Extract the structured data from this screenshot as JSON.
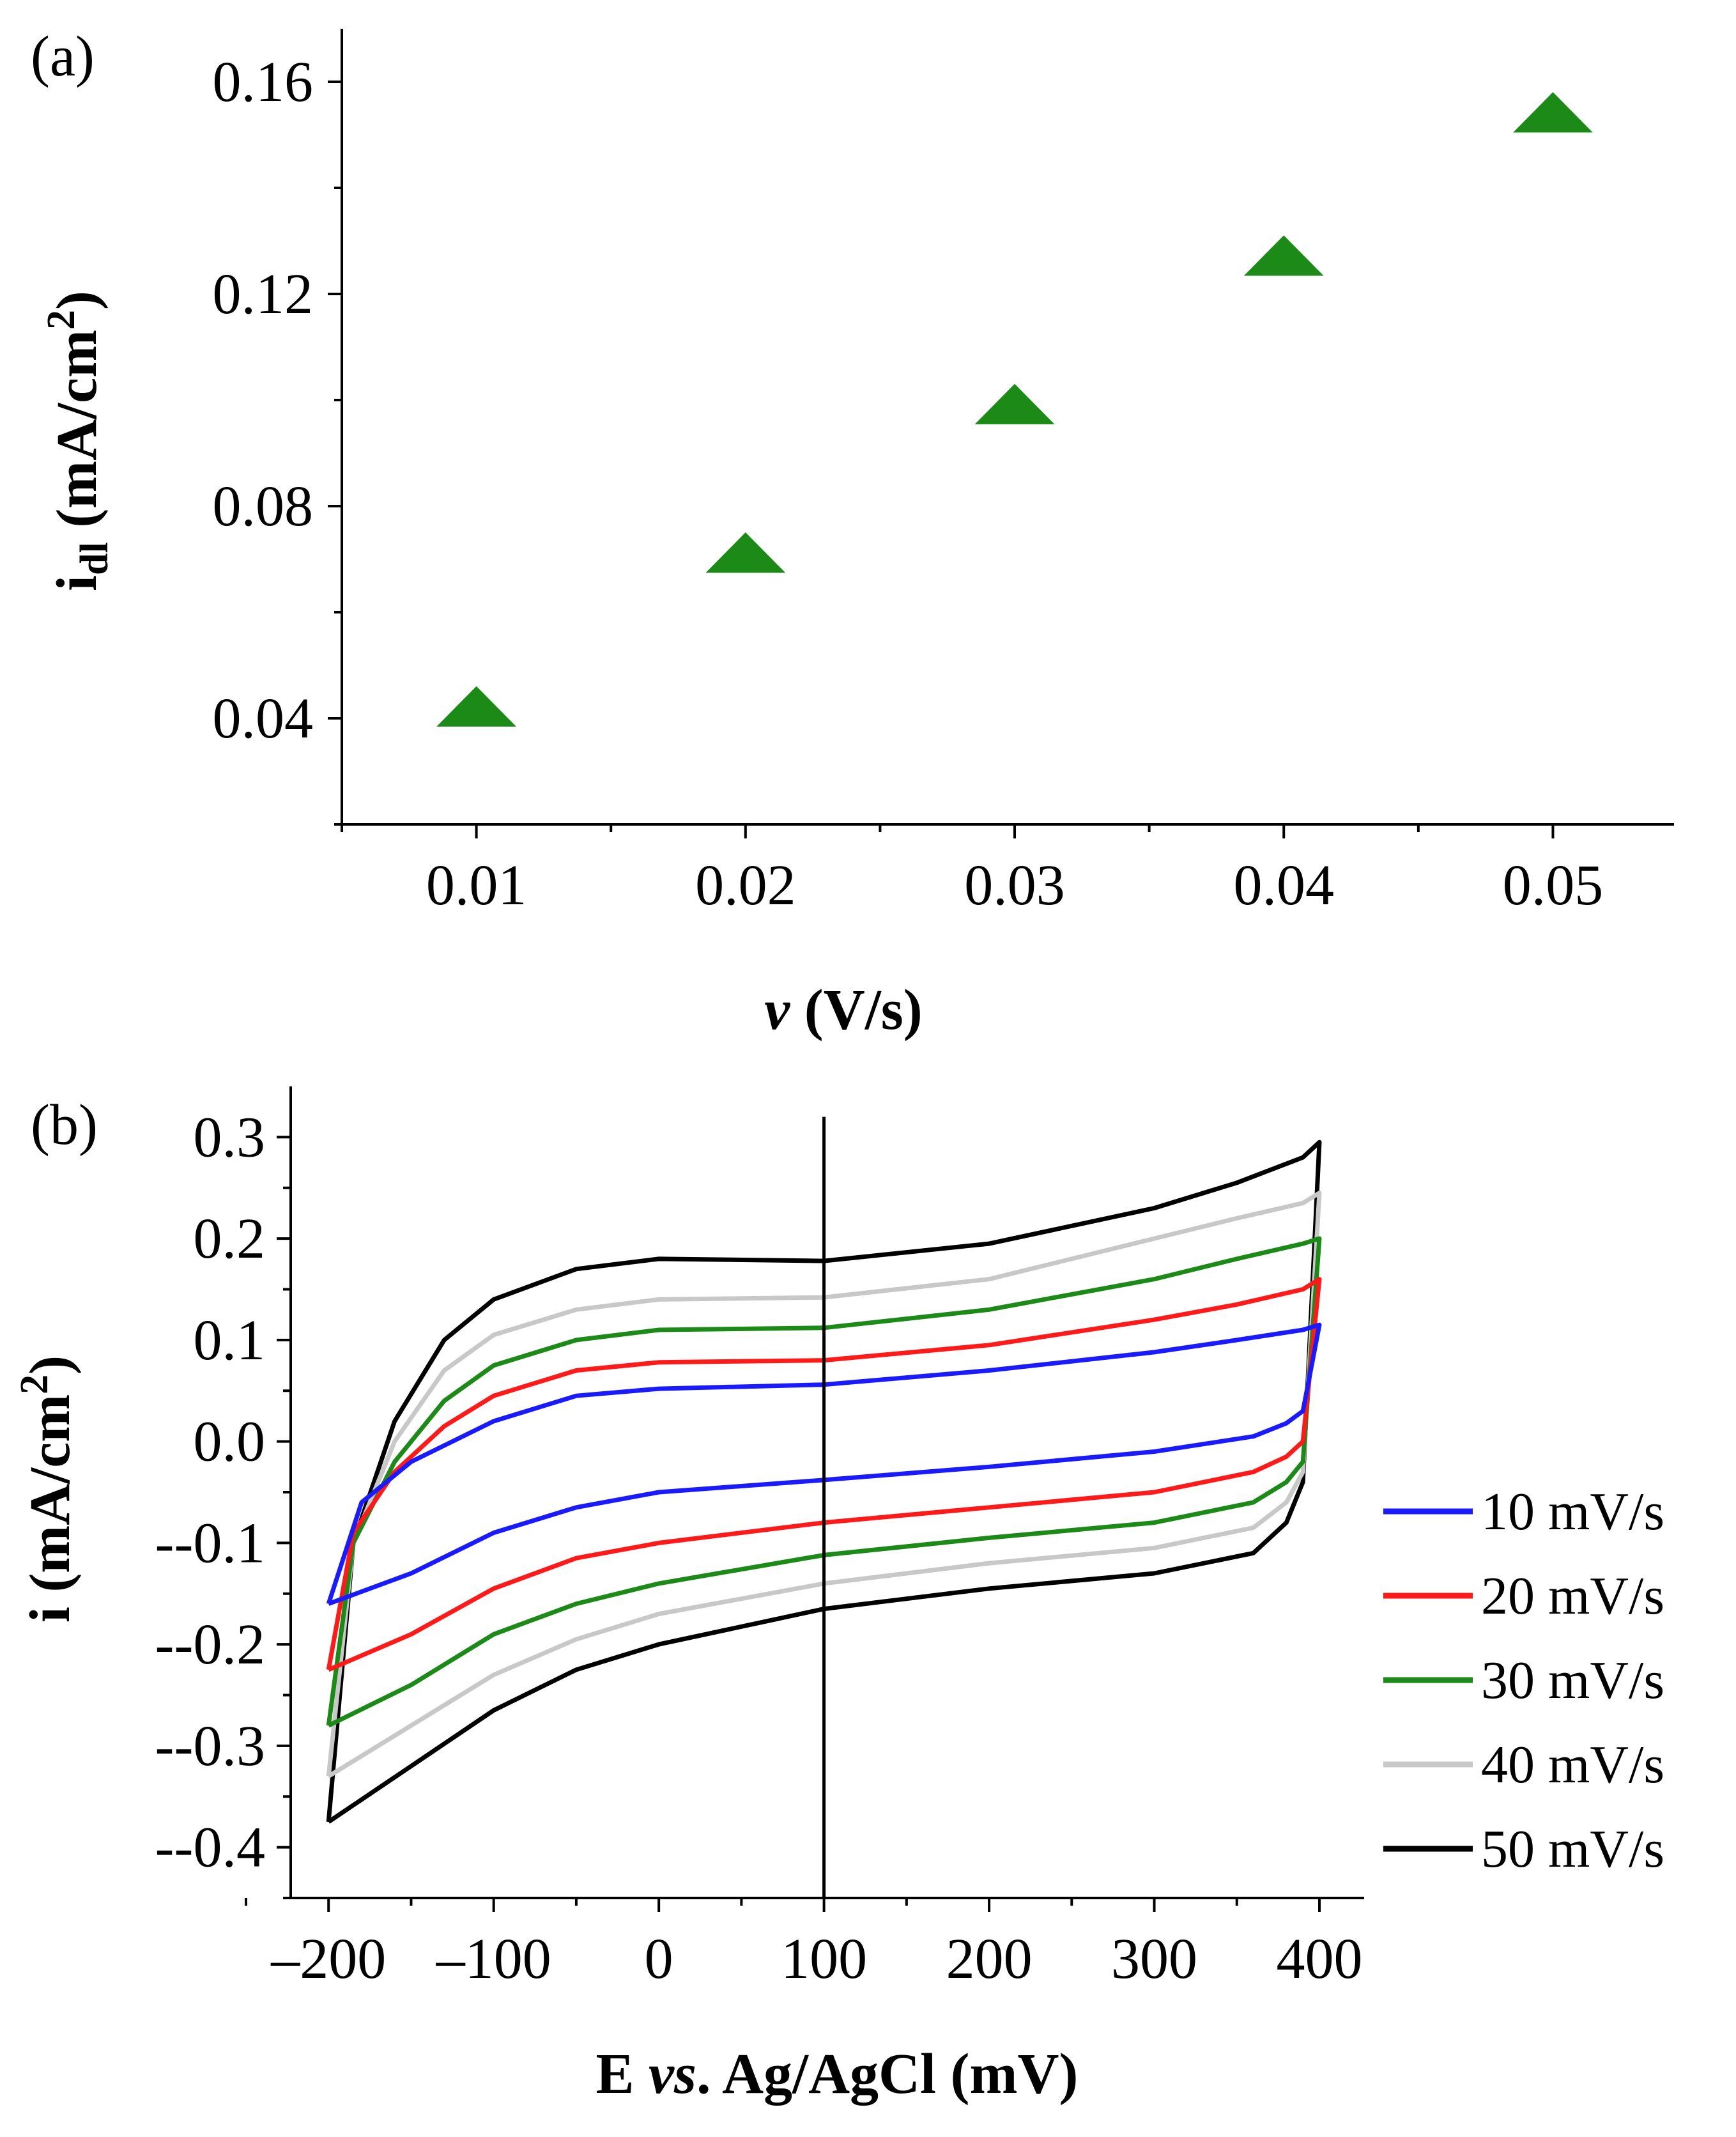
{
  "chart_data": [
    {
      "panel": "(a)",
      "type": "scatter",
      "marker": "triangle",
      "color": "#1b8a17",
      "x": [
        0.01,
        0.02,
        0.03,
        0.04,
        0.05
      ],
      "y": [
        0.042,
        0.071,
        0.099,
        0.127,
        0.154
      ],
      "xlim": [
        0.005,
        0.0545
      ],
      "ylim": [
        0.02,
        0.17
      ],
      "xticks": [
        0.01,
        0.02,
        0.03,
        0.04,
        0.05
      ],
      "xtick_labels": [
        "0.01",
        "0.02",
        "0.03",
        "0.04",
        "0.05"
      ],
      "yticks": [
        0.04,
        0.08,
        0.12,
        0.16
      ],
      "ytick_labels": [
        "0.04",
        "0.08",
        "0.12",
        "0.16"
      ],
      "xlabel_italic": "v",
      "xlabel_rest": " (V/s)",
      "ylabel_main": "i",
      "ylabel_sub": "dl",
      "ylabel_unit": " (mA/cm",
      "ylabel_sup": "2",
      "ylabel_close": ")"
    },
    {
      "panel": "(b)",
      "type": "line",
      "description_kind": "cyclic voltammetry",
      "xlim": [
        -250,
        400
      ],
      "ylim": [
        -0.45,
        0.35
      ],
      "xticks": [
        -200,
        -100,
        0,
        100,
        200,
        300,
        400
      ],
      "xtick_labels": [
        "–200",
        "–100",
        "0",
        "100",
        "200",
        "300",
        "400"
      ],
      "yticks": [
        0.3,
        0.2,
        0.1,
        0.0,
        -0.1,
        -0.2,
        -0.3,
        -0.4
      ],
      "ytick_labels": [
        "0.3",
        "0.2",
        "0.1",
        "0.0",
        "--0.1",
        "--0.2",
        "--0.3",
        "--0.4"
      ],
      "vertical_line_x": 100,
      "xlabel_pre": "E ",
      "xlabel_italic": "vs",
      "xlabel_rest": ". Ag/AgCl (mV)",
      "ylabel_main": "i (mA/cm",
      "ylabel_sup": "2",
      "ylabel_close": ")",
      "series": [
        {
          "name": "10 mV/s",
          "color": "#1a1aff",
          "anodic_x": [
            -200,
            -180,
            -150,
            -125,
            -100,
            -50,
            0,
            100,
            200,
            300,
            350,
            390,
            400
          ],
          "anodic_y": [
            -0.16,
            -0.06,
            -0.02,
            0.0,
            0.02,
            0.045,
            0.052,
            0.056,
            0.07,
            0.088,
            0.1,
            0.11,
            0.115
          ],
          "cathodic_x": [
            400,
            390,
            380,
            360,
            300,
            200,
            100,
            0,
            -50,
            -100,
            -150,
            -200
          ],
          "cathodic_y": [
            0.115,
            0.03,
            0.018,
            0.005,
            -0.01,
            -0.025,
            -0.038,
            -0.05,
            -0.065,
            -0.09,
            -0.13,
            -0.16
          ]
        },
        {
          "name": "20 mV/s",
          "color": "#ff1a1a",
          "anodic_x": [
            -200,
            -185,
            -160,
            -130,
            -100,
            -50,
            0,
            100,
            200,
            300,
            350,
            390,
            400
          ],
          "anodic_y": [
            -0.225,
            -0.09,
            -0.03,
            0.015,
            0.045,
            0.07,
            0.078,
            0.08,
            0.095,
            0.12,
            0.135,
            0.15,
            0.16
          ],
          "cathodic_x": [
            400,
            390,
            380,
            360,
            300,
            200,
            100,
            0,
            -50,
            -100,
            -150,
            -200
          ],
          "cathodic_y": [
            0.16,
            0.0,
            -0.015,
            -0.03,
            -0.05,
            -0.065,
            -0.08,
            -0.1,
            -0.115,
            -0.145,
            -0.19,
            -0.225
          ]
        },
        {
          "name": "30 mV/s",
          "color": "#1b8a17",
          "anodic_x": [
            -200,
            -185,
            -160,
            -130,
            -100,
            -50,
            0,
            100,
            200,
            300,
            350,
            390,
            400
          ],
          "anodic_y": [
            -0.28,
            -0.1,
            -0.02,
            0.04,
            0.075,
            0.1,
            0.11,
            0.112,
            0.13,
            0.16,
            0.18,
            0.195,
            0.2
          ],
          "cathodic_x": [
            400,
            390,
            380,
            360,
            300,
            200,
            100,
            0,
            -50,
            -100,
            -150,
            -200
          ],
          "cathodic_y": [
            0.2,
            -0.02,
            -0.04,
            -0.06,
            -0.08,
            -0.095,
            -0.112,
            -0.14,
            -0.16,
            -0.19,
            -0.24,
            -0.28
          ]
        },
        {
          "name": "40 mV/s",
          "color": "#c8c8c8",
          "anodic_x": [
            -200,
            -185,
            -160,
            -130,
            -100,
            -50,
            0,
            100,
            200,
            300,
            350,
            390,
            400
          ],
          "anodic_y": [
            -0.33,
            -0.1,
            0.0,
            0.07,
            0.105,
            0.13,
            0.14,
            0.142,
            0.16,
            0.2,
            0.22,
            0.235,
            0.245
          ],
          "cathodic_x": [
            400,
            390,
            380,
            360,
            300,
            200,
            100,
            0,
            -50,
            -100,
            -150,
            -200
          ],
          "cathodic_y": [
            0.245,
            -0.03,
            -0.06,
            -0.085,
            -0.105,
            -0.12,
            -0.14,
            -0.17,
            -0.195,
            -0.23,
            -0.28,
            -0.33
          ]
        },
        {
          "name": "50 mV/s",
          "color": "#000000",
          "anodic_x": [
            -200,
            -185,
            -160,
            -130,
            -100,
            -50,
            0,
            100,
            200,
            300,
            350,
            390,
            400
          ],
          "anodic_y": [
            -0.375,
            -0.1,
            0.02,
            0.1,
            0.14,
            0.17,
            0.18,
            0.178,
            0.195,
            0.23,
            0.255,
            0.28,
            0.295
          ],
          "cathodic_x": [
            400,
            390,
            380,
            360,
            300,
            200,
            100,
            0,
            -50,
            -100,
            -150,
            -200
          ],
          "cathodic_y": [
            0.295,
            -0.04,
            -0.08,
            -0.11,
            -0.13,
            -0.145,
            -0.165,
            -0.2,
            -0.225,
            -0.265,
            -0.32,
            -0.375
          ]
        }
      ]
    }
  ]
}
